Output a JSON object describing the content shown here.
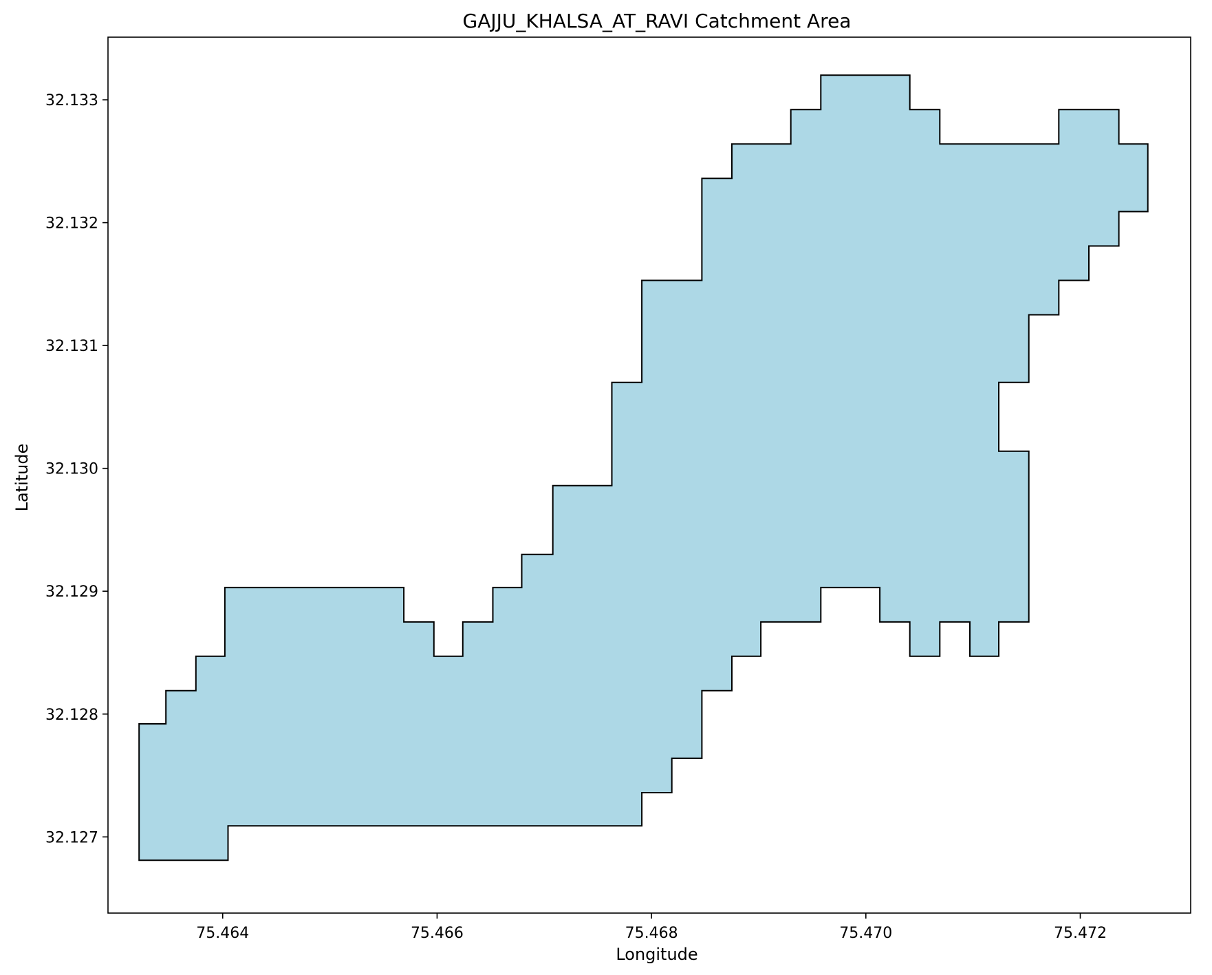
{
  "chart_data": {
    "type": "area",
    "title": "GAJJU_KHALSA_AT_RAVI Catchment Area",
    "xlabel": "Longitude",
    "ylabel": "Latitude",
    "xlim": [
      75.46293,
      75.47303
    ],
    "ylim": [
      32.12638,
      32.13351
    ],
    "x_ticks": [
      "75.464",
      "75.466",
      "75.468",
      "75.470",
      "75.472"
    ],
    "y_ticks": [
      "32.127",
      "32.128",
      "32.129",
      "32.130",
      "32.131",
      "32.132",
      "32.133"
    ],
    "grid": false,
    "legend": "none",
    "fill_color": "#add8e6",
    "edge_color": "#000000",
    "series": [
      {
        "polygon": [
          [
            75.46322,
            32.12681
          ],
          [
            75.46405,
            32.12681
          ],
          [
            75.46405,
            32.12709
          ],
          [
            75.46791,
            32.12709
          ],
          [
            75.46791,
            32.12736
          ],
          [
            75.46819,
            32.12736
          ],
          [
            75.46819,
            32.12764
          ],
          [
            75.46847,
            32.12764
          ],
          [
            75.46847,
            32.12819
          ],
          [
            75.46875,
            32.12819
          ],
          [
            75.46875,
            32.12847
          ],
          [
            75.46902,
            32.12847
          ],
          [
            75.46902,
            32.12875
          ],
          [
            75.46958,
            32.12875
          ],
          [
            75.46958,
            32.12903
          ],
          [
            75.47013,
            32.12903
          ],
          [
            75.47013,
            32.12875
          ],
          [
            75.47041,
            32.12875
          ],
          [
            75.47041,
            32.12847
          ],
          [
            75.47069,
            32.12847
          ],
          [
            75.47069,
            32.12875
          ],
          [
            75.47097,
            32.12875
          ],
          [
            75.47097,
            32.12847
          ],
          [
            75.47124,
            32.12847
          ],
          [
            75.47124,
            32.12875
          ],
          [
            75.47152,
            32.12875
          ],
          [
            75.47152,
            32.13014
          ],
          [
            75.47124,
            32.13014
          ],
          [
            75.47124,
            32.1307
          ],
          [
            75.47152,
            32.1307
          ],
          [
            75.47152,
            32.13125
          ],
          [
            75.4718,
            32.13125
          ],
          [
            75.4718,
            32.13153
          ],
          [
            75.47208,
            32.13153
          ],
          [
            75.47208,
            32.13181
          ],
          [
            75.47236,
            32.13181
          ],
          [
            75.47236,
            32.13209
          ],
          [
            75.47263,
            32.13209
          ],
          [
            75.47263,
            32.13264
          ],
          [
            75.47236,
            32.13264
          ],
          [
            75.47236,
            32.13292
          ],
          [
            75.4718,
            32.13292
          ],
          [
            75.4718,
            32.13264
          ],
          [
            75.47069,
            32.13264
          ],
          [
            75.47069,
            32.13292
          ],
          [
            75.47041,
            32.13292
          ],
          [
            75.47041,
            32.1332
          ],
          [
            75.46958,
            32.1332
          ],
          [
            75.46958,
            32.13292
          ],
          [
            75.4693,
            32.13292
          ],
          [
            75.4693,
            32.13264
          ],
          [
            75.46875,
            32.13264
          ],
          [
            75.46875,
            32.13236
          ],
          [
            75.46847,
            32.13236
          ],
          [
            75.46847,
            32.13153
          ],
          [
            75.46791,
            32.13153
          ],
          [
            75.46791,
            32.1307
          ],
          [
            75.46763,
            32.1307
          ],
          [
            75.46763,
            32.12986
          ],
          [
            75.46708,
            32.12986
          ],
          [
            75.46708,
            32.1293
          ],
          [
            75.46679,
            32.1293
          ],
          [
            75.46679,
            32.12903
          ],
          [
            75.46652,
            32.12903
          ],
          [
            75.46652,
            32.12875
          ],
          [
            75.46624,
            32.12875
          ],
          [
            75.46624,
            32.12847
          ],
          [
            75.46597,
            32.12847
          ],
          [
            75.46597,
            32.12875
          ],
          [
            75.46569,
            32.12875
          ],
          [
            75.46569,
            32.12903
          ],
          [
            75.46402,
            32.12903
          ],
          [
            75.46402,
            32.12847
          ],
          [
            75.46375,
            32.12847
          ],
          [
            75.46375,
            32.12819
          ],
          [
            75.46347,
            32.12819
          ],
          [
            75.46347,
            32.12792
          ],
          [
            75.46322,
            32.12792
          ]
        ]
      }
    ]
  }
}
